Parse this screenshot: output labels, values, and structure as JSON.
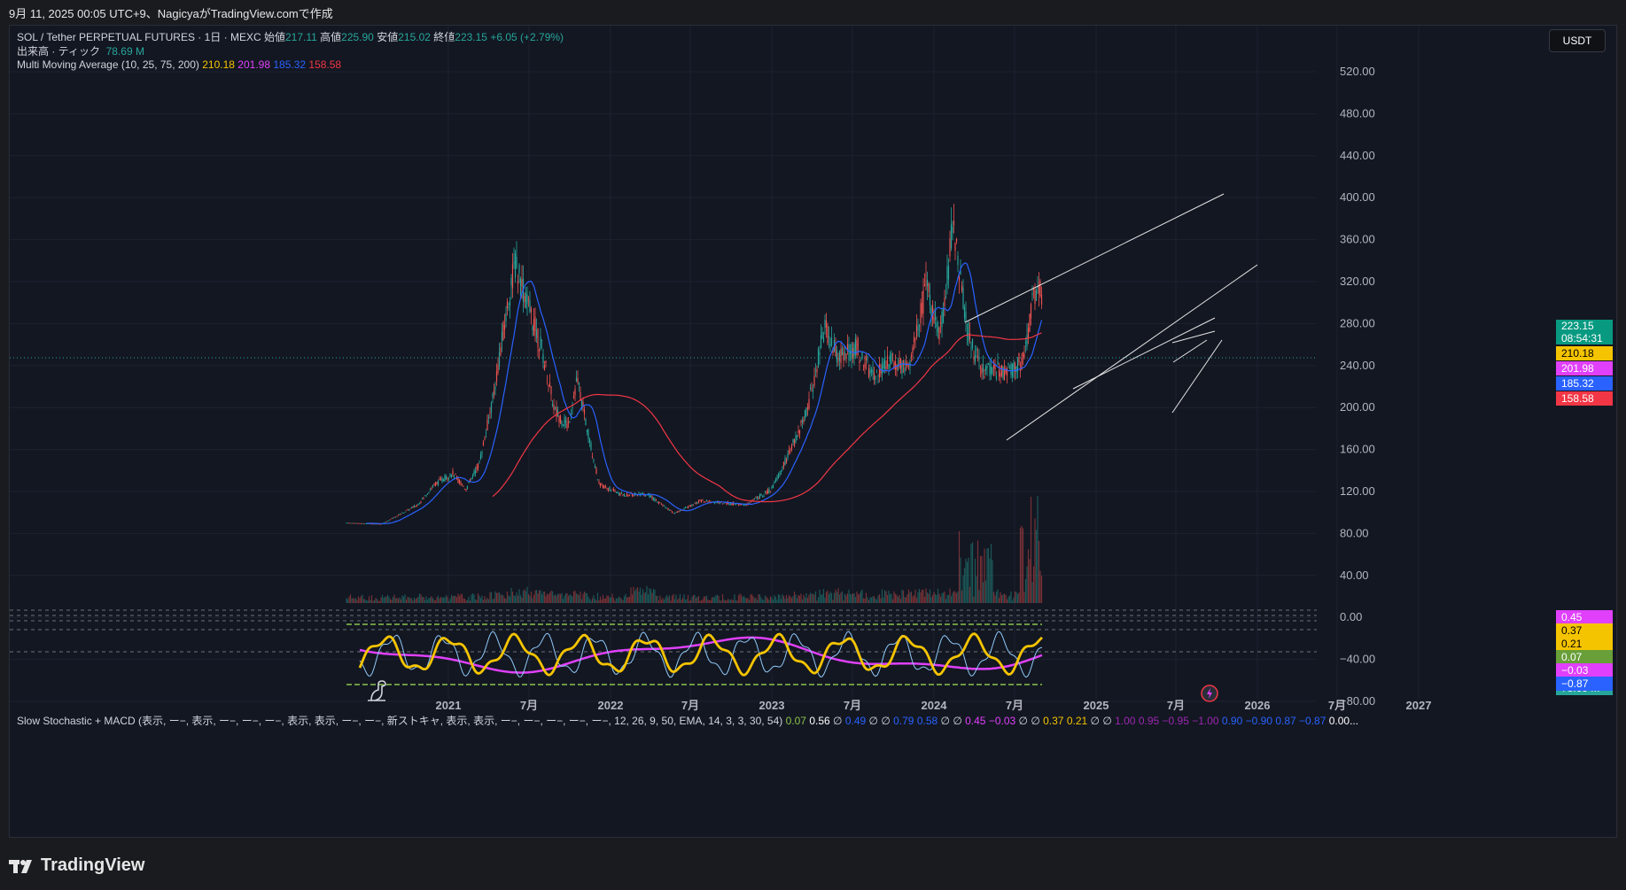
{
  "header": {
    "caption": "9月 11, 2025 00:05 UTC+9、NagicyaがTradingView.comで作成"
  },
  "symbol": {
    "title": "SOL / Tether PERPETUAL FUTURES · 1日 · MEXC",
    "open_label": "始値",
    "open": "217.11",
    "high_label": "高値",
    "high": "225.90",
    "low_label": "安値",
    "low": "215.02",
    "close_label": "終値",
    "close": "223.15",
    "change": "+6.05 (+2.79%)"
  },
  "volume": {
    "label": "出来高 · ティック",
    "value": "78.69 M"
  },
  "mma": {
    "label": "Multi Moving Average (10, 25, 75, 200)",
    "v1": "210.18",
    "v2": "201.98",
    "v3": "185.32",
    "v4": "158.58",
    "c1": "#f5c400",
    "c2": "#e040fb",
    "c3": "#2962ff",
    "c4": "#f23645"
  },
  "currency_button": "USDT",
  "price_axis": [
    "520.00",
    "480.00",
    "440.00",
    "400.00",
    "360.00",
    "320.00",
    "280.00",
    "240.00",
    "200.00",
    "160.00",
    "120.00",
    "80.00",
    "40.00",
    "0.00",
    "−40.00",
    "−80.00"
  ],
  "price_badges": {
    "last": "223.15",
    "countdown": "08:54:31",
    "ma1": "210.18",
    "ma2": "201.98",
    "ma3": "185.32",
    "ma4": "158.58",
    "vol": "78.69 M"
  },
  "time_axis": [
    "2021",
    "7月",
    "2022",
    "7月",
    "2023",
    "7月",
    "2024",
    "7月",
    "2025",
    "7月",
    "2026",
    "7月",
    "2027"
  ],
  "indicator": {
    "label": "Slow Stochastic + MACD (表示, ー−, 表示, ー−, ー−, ー−, 表示, 表示, ー−, ー−, 新ストキャ, 表示, 表示, ー−, ー−, ー−, ー−, ー−, 12, 26, 9, 50, EMA, 14, 3, 3, 30, 54)",
    "values": [
      {
        "t": "0.07",
        "c": "#8bc34a"
      },
      {
        "t": "0.56",
        "c": "#ffffff"
      },
      {
        "t": "∅",
        "c": "#d1d4dc"
      },
      {
        "t": "0.49",
        "c": "#2962ff"
      },
      {
        "t": "∅",
        "c": "#d1d4dc"
      },
      {
        "t": "∅",
        "c": "#d1d4dc"
      },
      {
        "t": "0.79",
        "c": "#2962ff"
      },
      {
        "t": "0.58",
        "c": "#2962ff"
      },
      {
        "t": "∅",
        "c": "#d1d4dc"
      },
      {
        "t": "∅",
        "c": "#d1d4dc"
      },
      {
        "t": "0.45",
        "c": "#e040fb"
      },
      {
        "t": "−0.03",
        "c": "#e040fb"
      },
      {
        "t": "∅",
        "c": "#d1d4dc"
      },
      {
        "t": "∅",
        "c": "#d1d4dc"
      },
      {
        "t": "0.37",
        "c": "#f5c400"
      },
      {
        "t": "0.21",
        "c": "#f5c400"
      },
      {
        "t": "∅",
        "c": "#d1d4dc"
      },
      {
        "t": "∅",
        "c": "#d1d4dc"
      },
      {
        "t": "1.00",
        "c": "#9c27b0"
      },
      {
        "t": "0.95",
        "c": "#9c27b0"
      },
      {
        "t": "−0.95",
        "c": "#9c27b0"
      },
      {
        "t": "−1.00",
        "c": "#9c27b0"
      },
      {
        "t": "0.90",
        "c": "#2962ff"
      },
      {
        "t": "−0.90",
        "c": "#2962ff"
      },
      {
        "t": "0.87",
        "c": "#2962ff"
      },
      {
        "t": "−0.87",
        "c": "#2962ff"
      },
      {
        "t": "0.00...",
        "c": "#ffffff"
      }
    ],
    "badges": [
      {
        "t": "0.45",
        "c": "#e040fb"
      },
      {
        "t": "0.37",
        "c": "#f5c400"
      },
      {
        "t": "0.21",
        "c": "#f5c400"
      },
      {
        "t": "0.07",
        "c": "#689f38"
      },
      {
        "t": "−0.03",
        "c": "#e040fb"
      },
      {
        "t": "−0.87",
        "c": "#2962ff"
      }
    ]
  },
  "brand": "TradingView"
}
